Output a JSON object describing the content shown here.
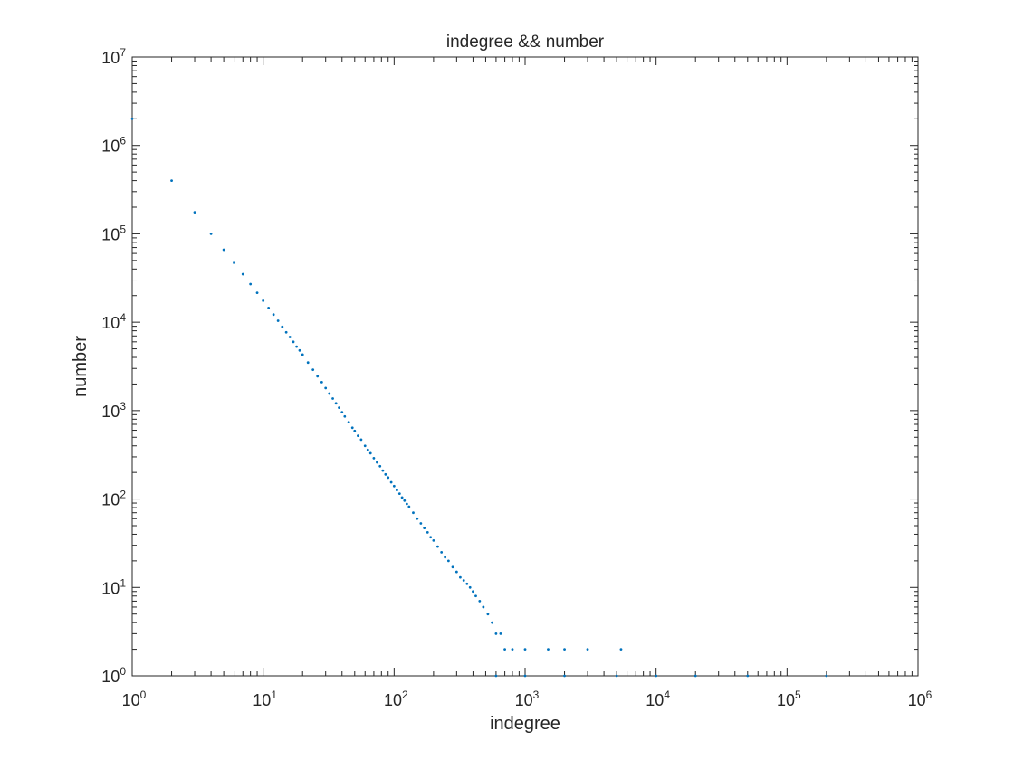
{
  "chart_data": {
    "type": "scatter",
    "title": "indegree && number",
    "xlabel": "indegree",
    "ylabel": "number",
    "x_scale": "log",
    "y_scale": "log",
    "xlim": [
      1,
      1000000
    ],
    "ylim": [
      1,
      10000000
    ],
    "x_ticks": [
      {
        "base": "10",
        "exp": "0"
      },
      {
        "base": "10",
        "exp": "1"
      },
      {
        "base": "10",
        "exp": "2"
      },
      {
        "base": "10",
        "exp": "3"
      },
      {
        "base": "10",
        "exp": "4"
      },
      {
        "base": "10",
        "exp": "5"
      },
      {
        "base": "10",
        "exp": "6"
      }
    ],
    "y_ticks": [
      {
        "base": "10",
        "exp": "0"
      },
      {
        "base": "10",
        "exp": "1"
      },
      {
        "base": "10",
        "exp": "2"
      },
      {
        "base": "10",
        "exp": "3"
      },
      {
        "base": "10",
        "exp": "4"
      },
      {
        "base": "10",
        "exp": "5"
      },
      {
        "base": "10",
        "exp": "6"
      },
      {
        "base": "10",
        "exp": "7"
      }
    ],
    "grid": false,
    "box": true,
    "marker_color": "#0072BD",
    "series": [
      {
        "points": [
          [
            1,
            2000000
          ],
          [
            2,
            400000
          ],
          [
            3,
            175000
          ],
          [
            4,
            100000
          ],
          [
            5,
            66000
          ],
          [
            6,
            47000
          ],
          [
            7,
            35000
          ],
          [
            8,
            27000
          ],
          [
            9,
            21500
          ],
          [
            10,
            17500
          ],
          [
            11,
            14500
          ],
          [
            12,
            12200
          ],
          [
            13,
            10400
          ],
          [
            14,
            8900
          ],
          [
            15,
            7700
          ],
          [
            16,
            6800
          ],
          [
            17,
            6000
          ],
          [
            18,
            5300
          ],
          [
            19,
            4800
          ],
          [
            20,
            4300
          ],
          [
            22,
            3500
          ],
          [
            24,
            2900
          ],
          [
            26,
            2450
          ],
          [
            28,
            2100
          ],
          [
            30,
            1800
          ],
          [
            32,
            1560
          ],
          [
            34,
            1370
          ],
          [
            36,
            1210
          ],
          [
            38,
            1080
          ],
          [
            40,
            960
          ],
          [
            42,
            860
          ],
          [
            45,
            740
          ],
          [
            48,
            640
          ],
          [
            50,
            590
          ],
          [
            53,
            520
          ],
          [
            56,
            470
          ],
          [
            60,
            400
          ],
          [
            63,
            360
          ],
          [
            66,
            330
          ],
          [
            70,
            290
          ],
          [
            74,
            260
          ],
          [
            78,
            235
          ],
          [
            82,
            210
          ],
          [
            86,
            190
          ],
          [
            90,
            175
          ],
          [
            95,
            155
          ],
          [
            100,
            140
          ],
          [
            105,
            126
          ],
          [
            110,
            115
          ],
          [
            115,
            104
          ],
          [
            120,
            96
          ],
          [
            125,
            88
          ],
          [
            130,
            82
          ],
          [
            140,
            70
          ],
          [
            150,
            60
          ],
          [
            160,
            53
          ],
          [
            170,
            47
          ],
          [
            180,
            42
          ],
          [
            190,
            37
          ],
          [
            200,
            34
          ],
          [
            215,
            29
          ],
          [
            230,
            25
          ],
          [
            245,
            22
          ],
          [
            260,
            20
          ],
          [
            280,
            17
          ],
          [
            300,
            15
          ],
          [
            320,
            13
          ],
          [
            340,
            12
          ],
          [
            360,
            11
          ],
          [
            380,
            10
          ],
          [
            400,
            9
          ],
          [
            420,
            8
          ],
          [
            450,
            7
          ],
          [
            480,
            6
          ],
          [
            520,
            5
          ],
          [
            560,
            4
          ],
          [
            600,
            3
          ],
          [
            650,
            3
          ],
          [
            700,
            2
          ],
          [
            800,
            2
          ],
          [
            1000,
            2
          ],
          [
            1500,
            2
          ],
          [
            2000,
            2
          ],
          [
            3000,
            2
          ],
          [
            5400,
            2
          ],
          [
            600,
            1
          ],
          [
            1000,
            1
          ],
          [
            2000,
            1
          ],
          [
            5000,
            1
          ],
          [
            10000,
            1
          ],
          [
            20000,
            1
          ],
          [
            50000,
            1
          ],
          [
            200000,
            1
          ]
        ]
      }
    ]
  }
}
